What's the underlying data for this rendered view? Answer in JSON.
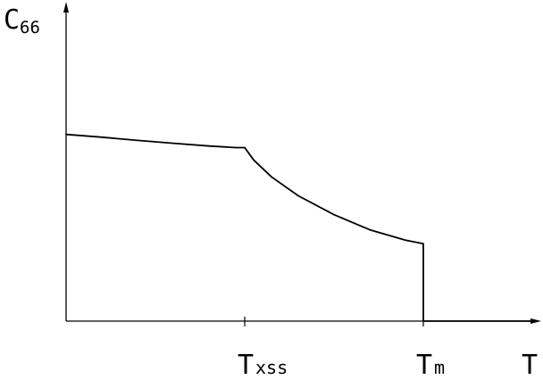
{
  "chart_data": {
    "type": "line",
    "title": "",
    "ylabel": {
      "main": "C",
      "sub": "66"
    },
    "xlabel": "T",
    "xlim": [
      0,
      2.6
    ],
    "ylim": [
      0,
      1.0
    ],
    "grid": false,
    "x_ticks": [
      {
        "x": 1.0,
        "main": "T",
        "sub": "xss"
      },
      {
        "x": 2.0,
        "main": "T",
        "sub": "m"
      }
    ],
    "series": [
      {
        "x": [
          0.0,
          0.2,
          0.4,
          0.6,
          0.8,
          0.95,
          1.0,
          1.05,
          1.15,
          1.3,
          1.5,
          1.7,
          1.9,
          2.0,
          2.0,
          2.1,
          2.3,
          2.5,
          2.6
        ],
        "y": [
          0.593,
          0.584,
          0.574,
          0.565,
          0.556,
          0.551,
          0.551,
          0.512,
          0.458,
          0.398,
          0.338,
          0.29,
          0.257,
          0.246,
          0.0,
          0.0,
          0.0,
          0.0,
          0.0
        ]
      }
    ]
  }
}
